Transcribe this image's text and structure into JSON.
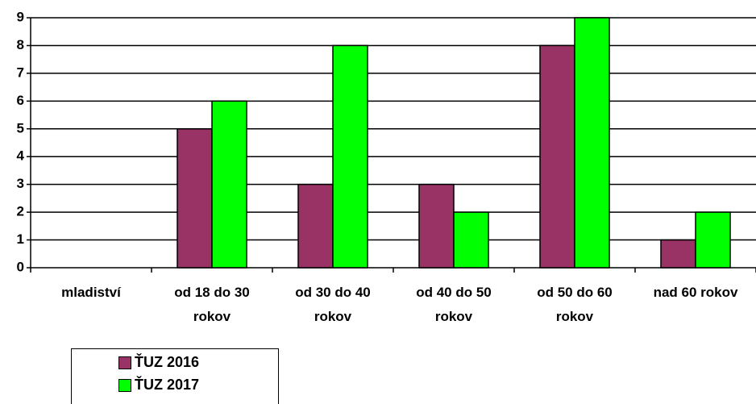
{
  "chart_data": {
    "type": "bar",
    "categories": [
      "mladiství",
      "od 18 do 30 rokov",
      "od 30 do 40 rokov",
      "od 40 do 50 rokov",
      "od 50 do 60 rokov",
      "nad 60 rokov"
    ],
    "series": [
      {
        "name": "ŤUZ 2016",
        "color": "#993366",
        "values": [
          0,
          5,
          3,
          3,
          8,
          1
        ]
      },
      {
        "name": "ŤUZ 2017",
        "color": "#00ff00",
        "values": [
          0,
          6,
          8,
          2,
          9,
          2
        ]
      }
    ],
    "ylim": [
      0,
      9
    ],
    "yticks": [
      0,
      1,
      2,
      3,
      4,
      5,
      6,
      7,
      8,
      9
    ],
    "grid": true
  }
}
